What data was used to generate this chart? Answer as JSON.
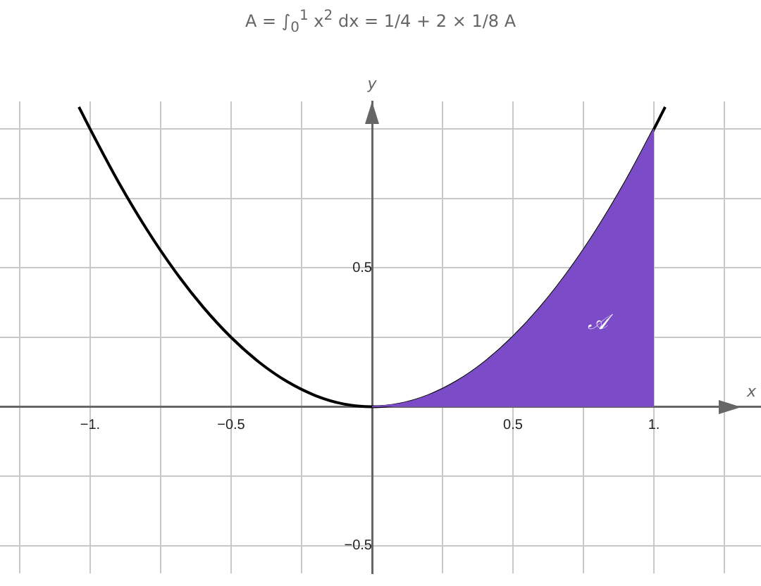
{
  "chart_data": {
    "type": "line",
    "title": "A = ∫$_{0}$$^{1}$ x$^{2}$ dx = 1/4 + 2 × 1/8 A",
    "xlabel": "x",
    "ylabel": "y",
    "xlim": [
      -1.32,
      1.38
    ],
    "ylim": [
      -0.6,
      1.1
    ],
    "xticks": [
      {
        "value": -1.25,
        "label": null
      },
      {
        "value": -1,
        "label": "−1."
      },
      {
        "value": -0.75,
        "label": null
      },
      {
        "value": -0.5,
        "label": "−0.5"
      },
      {
        "value": -0.25,
        "label": null
      },
      {
        "value": 0.25,
        "label": null
      },
      {
        "value": 0.5,
        "label": "0.5"
      },
      {
        "value": 0.75,
        "label": null
      },
      {
        "value": 1,
        "label": "1."
      },
      {
        "value": 1.25,
        "label": null
      }
    ],
    "yticks": [
      {
        "value": -0.5,
        "label": "−0.5"
      },
      {
        "value": -0.25,
        "label": null
      },
      {
        "value": 0.25,
        "label": null
      },
      {
        "value": 0.5,
        "label": "0.5"
      },
      {
        "value": 0.75,
        "label": null
      },
      {
        "value": 1,
        "label": null
      }
    ],
    "grid": true,
    "legend": false,
    "series": [
      {
        "type": "area",
        "color": "#7b4bc8",
        "x": [
          0,
          0.1,
          0.2,
          0.3,
          0.4,
          0.5,
          0.6,
          0.7,
          0.8,
          0.9,
          1
        ],
        "values": [
          0,
          0.01,
          0.04,
          0.09,
          0.16,
          0.25,
          0.36,
          0.49,
          0.64,
          0.81,
          1
        ]
      },
      {
        "color": "#000000",
        "x": [
          -1.04,
          -1,
          -0.9,
          -0.8,
          -0.7,
          -0.6,
          -0.5,
          -0.4,
          -0.3,
          -0.2,
          -0.1,
          0,
          0.1,
          0.2,
          0.3,
          0.4,
          0.5,
          0.6,
          0.7,
          0.8,
          0.9,
          1,
          1.04
        ],
        "values": [
          1.08,
          1,
          0.81,
          0.64,
          0.49,
          0.36,
          0.25,
          0.16,
          0.09,
          0.04,
          0.01,
          0,
          0.01,
          0.04,
          0.09,
          0.16,
          0.25,
          0.36,
          0.49,
          0.64,
          0.81,
          1,
          1.08
        ]
      }
    ],
    "annotations": [
      "𝒜"
    ]
  }
}
